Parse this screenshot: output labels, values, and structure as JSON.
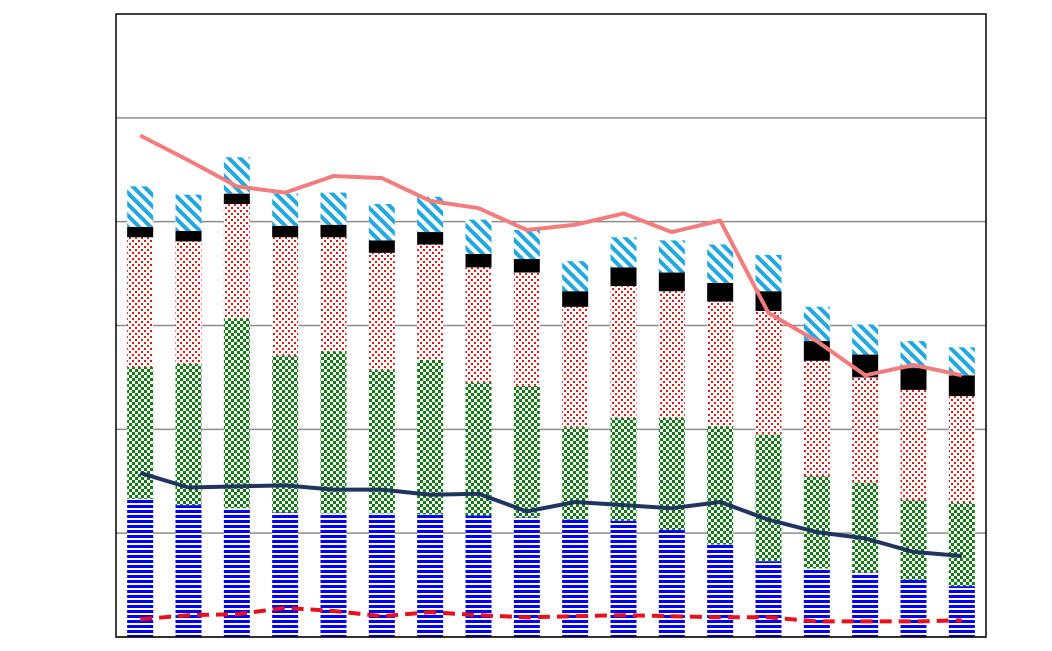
{
  "chart_data": {
    "type": "bar",
    "stacked": true,
    "grid": true,
    "categories": [
      null,
      null,
      null,
      null,
      null,
      null,
      null,
      null,
      null,
      null,
      null,
      null,
      null,
      null,
      null,
      null,
      null,
      null
    ],
    "ylim": [
      0,
      6
    ],
    "yticks": [
      0,
      1,
      2,
      3,
      4,
      5
    ],
    "series": [
      {
        "type": "bar",
        "pattern": "horizontal-lines",
        "color": "#0000ff",
        "values": [
          1.33,
          1.27,
          1.24,
          1.2,
          1.19,
          1.19,
          1.18,
          1.17,
          1.15,
          1.13,
          1.12,
          1.03,
          0.89,
          0.73,
          0.66,
          0.62,
          0.55,
          0.49
        ]
      },
      {
        "type": "bar",
        "pattern": "checker",
        "color": "#127a12",
        "values": [
          1.27,
          1.36,
          1.83,
          1.51,
          1.56,
          1.38,
          1.49,
          1.28,
          1.27,
          0.89,
          0.99,
          1.08,
          1.14,
          1.22,
          0.89,
          0.87,
          0.77,
          0.8
        ]
      },
      {
        "type": "bar",
        "pattern": "dots",
        "color": "#e01818",
        "values": [
          1.25,
          1.18,
          1.1,
          1.14,
          1.1,
          1.13,
          1.11,
          1.11,
          1.09,
          1.16,
          1.27,
          1.22,
          1.2,
          1.19,
          1.11,
          1.01,
          1.06,
          1.03
        ]
      },
      {
        "type": "bar",
        "pattern": "solid",
        "color": "#000000",
        "values": [
          0.1,
          0.1,
          0.1,
          0.11,
          0.12,
          0.12,
          0.12,
          0.13,
          0.13,
          0.15,
          0.18,
          0.18,
          0.18,
          0.19,
          0.19,
          0.22,
          0.21,
          0.2
        ]
      },
      {
        "type": "bar",
        "pattern": "diagonal",
        "color": "#22a8e0",
        "values": [
          0.39,
          0.35,
          0.35,
          0.31,
          0.31,
          0.35,
          0.34,
          0.33,
          0.28,
          0.29,
          0.29,
          0.31,
          0.37,
          0.35,
          0.33,
          0.29,
          0.26,
          0.27
        ]
      },
      {
        "type": "line",
        "dash": false,
        "color": "#f47c7c",
        "values": [
          4.83,
          4.59,
          4.34,
          4.28,
          4.44,
          4.42,
          4.2,
          4.13,
          3.92,
          3.97,
          4.08,
          3.9,
          4.01,
          3.12,
          2.85,
          2.52,
          2.62,
          2.52
        ]
      },
      {
        "type": "line",
        "dash": false,
        "color": "#1f3560",
        "values": [
          1.58,
          1.44,
          1.45,
          1.46,
          1.42,
          1.42,
          1.37,
          1.38,
          1.21,
          1.3,
          1.27,
          1.24,
          1.3,
          1.13,
          1.01,
          0.95,
          0.82,
          0.78
        ]
      },
      {
        "type": "line",
        "dash": true,
        "color": "#e8101a",
        "values": [
          0.17,
          0.21,
          0.22,
          0.28,
          0.25,
          0.2,
          0.24,
          0.21,
          0.19,
          0.2,
          0.21,
          0.2,
          0.19,
          0.19,
          0.15,
          0.15,
          0.15,
          0.16
        ]
      }
    ]
  }
}
